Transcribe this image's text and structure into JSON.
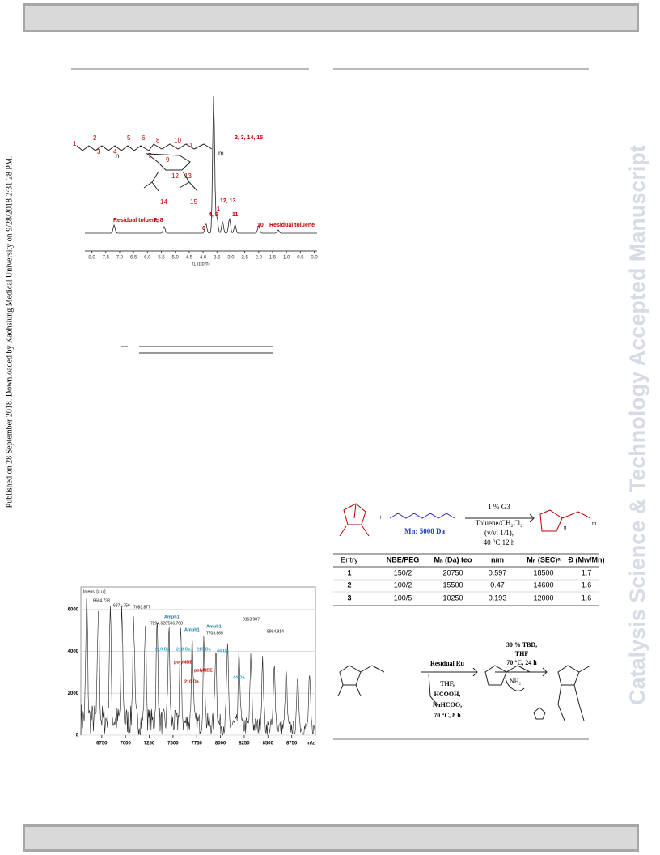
{
  "side_note": "Published on 28 September 2018. Downloaded by Kaohsiung Medical University on 9/28/2018 2:31:28 PM.",
  "watermark": "Catalysis Science & Technology Accepted Manuscript",
  "nmr_figure": {
    "labels": [
      "Residual toluene",
      "7, 8",
      "2, 3, 14, 15",
      "4, 5",
      "1",
      "6",
      "12, 13",
      "11",
      "10",
      "Residual toluene"
    ],
    "structure_labels": [
      "1",
      "2",
      "3",
      "4",
      "5",
      "6",
      "7",
      "8",
      "9",
      "10",
      "11",
      "12",
      "13",
      "14",
      "15",
      "n",
      "m"
    ],
    "x_label": "f1 (ppm)",
    "xlim": [
      8.25,
      -0.1
    ],
    "xticks": [
      {
        "value": 8,
        "label": "8.0"
      },
      {
        "value": 7.5,
        "label": "7.5"
      },
      {
        "value": 7,
        "label": "7.0"
      },
      {
        "value": 6.5,
        "label": "6.5"
      },
      {
        "value": 6,
        "label": "6.0"
      },
      {
        "value": 5.5,
        "label": "5.5"
      },
      {
        "value": 5,
        "label": "5.0"
      },
      {
        "value": 4.5,
        "label": "4.5"
      },
      {
        "value": 4,
        "label": "4.0"
      },
      {
        "value": 3.5,
        "label": "3.5"
      },
      {
        "value": 3,
        "label": "3.0"
      },
      {
        "value": 2.5,
        "label": "2.5"
      },
      {
        "value": 2,
        "label": "2.0"
      },
      {
        "value": 1.5,
        "label": "1.5"
      },
      {
        "value": 1,
        "label": "1.0"
      },
      {
        "value": 0.5,
        "label": "0.5"
      },
      {
        "value": 0,
        "label": "0.0"
      }
    ]
  },
  "scheme1": {
    "conditions": [
      "1 % G3",
      "Toluene/CH₂Cl₂",
      "(v/v: 1/1),",
      "40 °C,12 h"
    ],
    "mn_label": "Mn: 5000 Da",
    "plus": "+",
    "subscripts": [
      "n",
      "m"
    ]
  },
  "table": {
    "headers": [
      "Entry",
      "NBE/PEG",
      "Mₙ (Da) teo",
      "n/m",
      "Mₙ (SEC)ᵃ",
      "Đ (Mw/Mn)"
    ],
    "rows": [
      [
        1,
        "150/2",
        20750,
        0.597,
        18500,
        1.7
      ],
      [
        2,
        "100/2",
        15500,
        0.47,
        14600,
        1.6
      ],
      [
        3,
        "100/5",
        10250,
        0.193,
        12000,
        1.6
      ]
    ]
  },
  "scheme2": {
    "step1": [
      "Residual Ru",
      "THF,",
      "HCOOH,",
      "NaHCOO,",
      "70 °C, 8 h"
    ],
    "step2": [
      "30 % TBD,",
      "THF",
      "70 °C, 24 h"
    ],
    "reagent": "NH₂"
  },
  "maldi": {
    "y_label": "Intens. [a.u.]",
    "x_label": "m/z",
    "xlim": [
      6530,
      9000
    ],
    "ylim": [
      0,
      6300
    ],
    "xticks": [
      6750,
      7000,
      7250,
      7500,
      7750,
      8000,
      8250,
      8500,
      8750
    ],
    "yticks": [
      0,
      2000,
      4000,
      6000
    ],
    "peak_labels": [
      "6664.733",
      "6871.756",
      "7083.877",
      "7294.626",
      "7506.768",
      "7703.865",
      "8163.987",
      "8994.914"
    ],
    "annotations": [
      "Amph1",
      "Amph1",
      "Amph1",
      "210 Da",
      "210 Da",
      "210 Da",
      "polyNBE",
      "polyNBE",
      "44 Da",
      "44 Da",
      "210 Da"
    ]
  }
}
